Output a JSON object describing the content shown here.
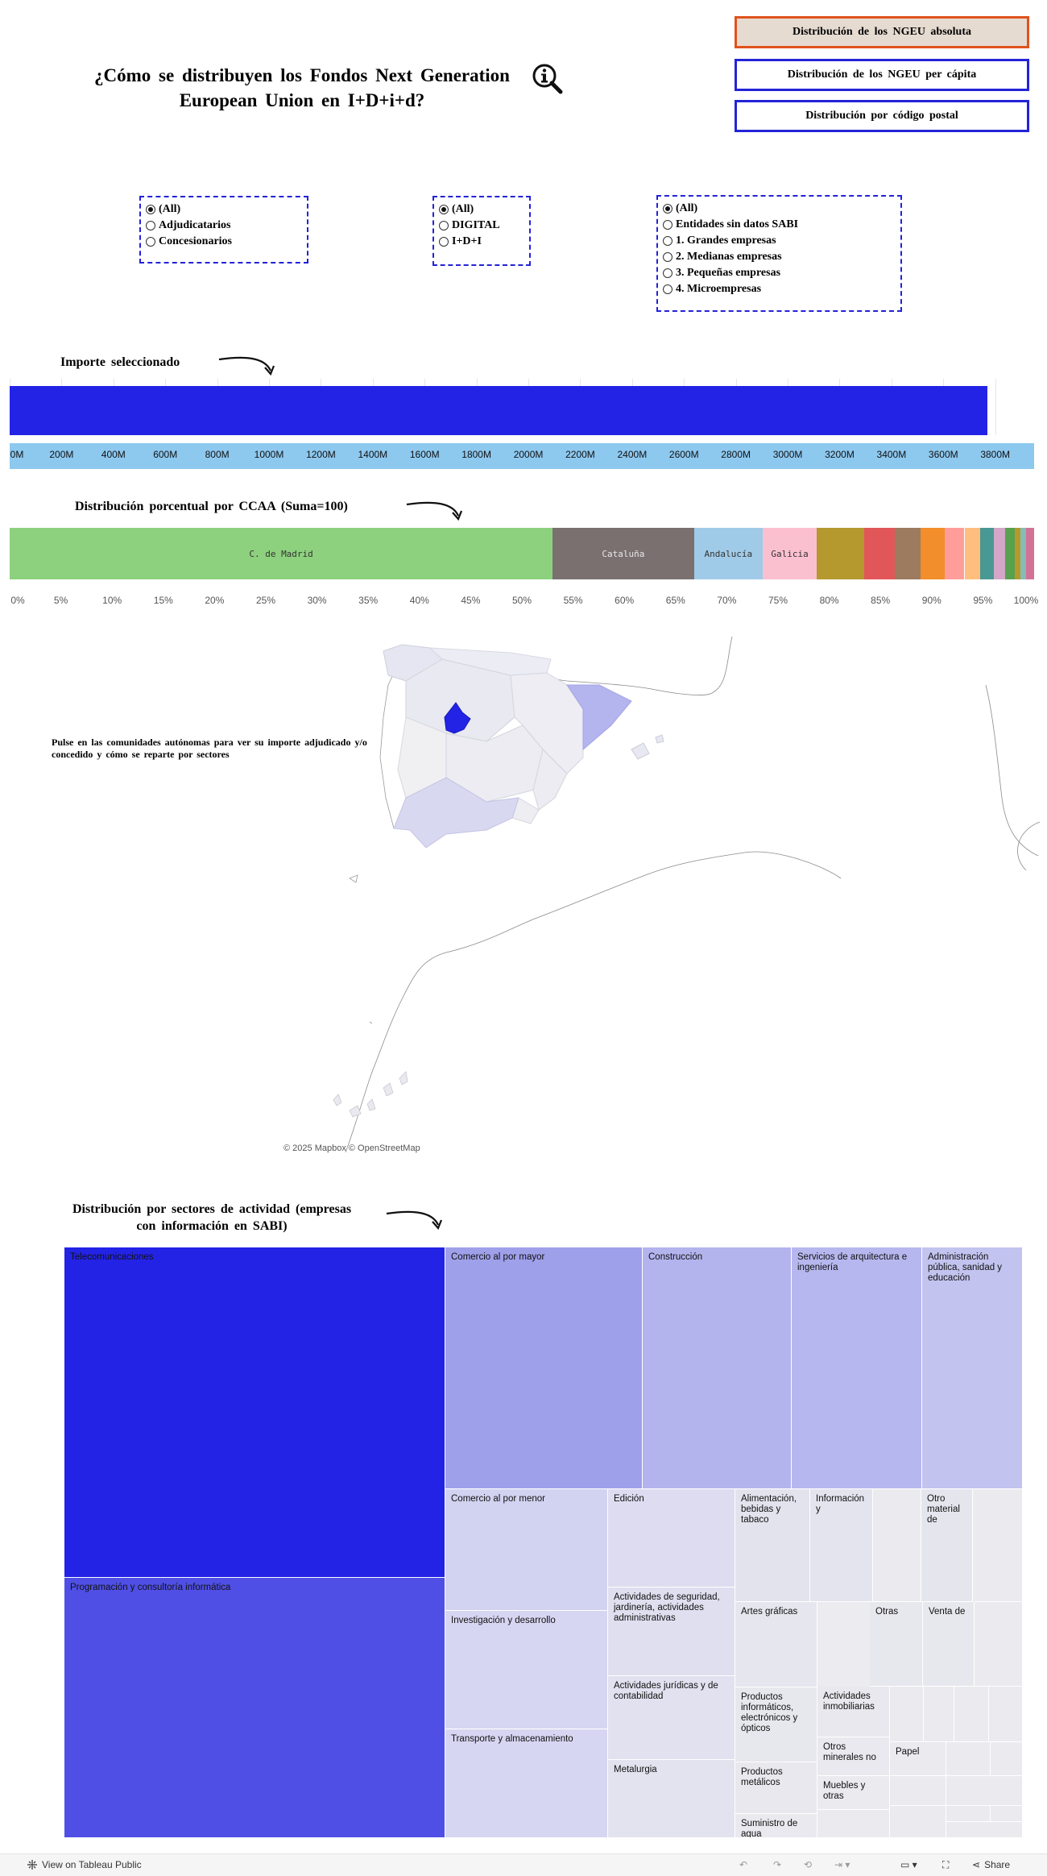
{
  "header": {
    "title": "¿Cómo se distribuyen los Fondos Next Generation European Union en I+D+i+d?",
    "nav_buttons": [
      {
        "label": "Distribución de los NGEU absoluta",
        "active": true
      },
      {
        "label": "Distribución de los NGEU per cápita",
        "active": false
      },
      {
        "label": "Distribución por código postal",
        "active": false
      }
    ]
  },
  "filters": {
    "tipo": {
      "options": [
        "(All)",
        "Adjudicatarios",
        "Concesionarios"
      ],
      "selected": 0
    },
    "ambito": {
      "options": [
        "(All)",
        "DIGITAL",
        "I+D+I"
      ],
      "selected": 0
    },
    "empresa": {
      "options": [
        "(All)",
        "Entidades sin datos SABI",
        "1. Grandes empresas",
        "2. Medianas empresas",
        "3. Pequeñas empresas",
        "4. Microempresas"
      ],
      "selected": 0
    }
  },
  "importe": {
    "title": "Importe seleccionado",
    "bar_color": "#2323e6",
    "axis_band_color": "#8dc8ef",
    "ticks": [
      "0M",
      "200M",
      "400M",
      "600M",
      "800M",
      "1000M",
      "1200M",
      "1400M",
      "1600M",
      "1800M",
      "2000M",
      "2200M",
      "2400M",
      "2600M",
      "2800M",
      "3000M",
      "3200M",
      "3400M",
      "3600M",
      "3800M"
    ]
  },
  "ccaa": {
    "title": "Distribución porcentual por CCAA (Suma=100)",
    "ticks": [
      "0%",
      "5%",
      "10%",
      "15%",
      "20%",
      "25%",
      "30%",
      "35%",
      "40%",
      "45%",
      "50%",
      "55%",
      "60%",
      "65%",
      "70%",
      "75%",
      "80%",
      "85%",
      "90%",
      "95%",
      "100%"
    ]
  },
  "map": {
    "instruction": "Pulse en las comunidades autónomas para ver su importe adjudicado y/o concedido y cómo se reparte por sectores",
    "credit": "© 2025 Mapbox © OpenStreetMap",
    "highlight_color": "#2323e6"
  },
  "sectores": {
    "title": "Distribución por sectores de actividad (empresas con información en SABI)"
  },
  "chart_data": [
    {
      "type": "bar",
      "title": "Importe seleccionado",
      "categories": [
        ""
      ],
      "values": [
        3770
      ],
      "xlim": [
        0,
        3950
      ],
      "unit": "M"
    },
    {
      "type": "bar",
      "stacked": true,
      "title": "Distribución porcentual por CCAA (Suma=100)",
      "xlim": [
        0,
        100
      ],
      "series": [
        {
          "name": "C. de Madrid",
          "value": 53.0,
          "color": "#8dd17e",
          "text_color": "#333333"
        },
        {
          "name": "Cataluña",
          "value": 13.8,
          "color": "#7a7070",
          "text_color": "#e8e8e8"
        },
        {
          "name": "Andalucía",
          "value": 6.7,
          "color": "#a0cbe8",
          "text_color": "#333333"
        },
        {
          "name": "Galicia",
          "value": 5.3,
          "color": "#fbc0d0",
          "text_color": "#333333"
        },
        {
          "name": "",
          "value": 4.6,
          "color": "#b5992e",
          "text_color": "#333333"
        },
        {
          "name": "",
          "value": 3.0,
          "color": "#e15759",
          "text_color": "#333333"
        },
        {
          "name": "",
          "value": 2.5,
          "color": "#9c7b5f",
          "text_color": "#333333"
        },
        {
          "name": "",
          "value": 2.4,
          "color": "#f28e2b",
          "text_color": "#333333"
        },
        {
          "name": "",
          "value": 1.9,
          "color": "#ff9d9a",
          "text_color": "#333333"
        },
        {
          "name": "",
          "value": 1.5,
          "color": "#ffbe7d",
          "text_color": "#333333"
        },
        {
          "name": "",
          "value": 1.4,
          "color": "#499894",
          "text_color": "#333333"
        },
        {
          "name": "",
          "value": 1.1,
          "color": "#d4a6c8",
          "text_color": "#333333"
        },
        {
          "name": "",
          "value": 0.9,
          "color": "#59a14f",
          "text_color": "#333333"
        },
        {
          "name": "",
          "value": 0.6,
          "color": "#b6992d",
          "text_color": "#333333"
        },
        {
          "name": "",
          "value": 0.5,
          "color": "#86bcb6",
          "text_color": "#333333"
        },
        {
          "name": "",
          "value": 0.8,
          "color": "#d37295",
          "text_color": "#333333"
        }
      ]
    },
    {
      "type": "heatmap",
      "subtype": "treemap",
      "title": "Distribución por sectores de actividad (empresas con información en SABI)",
      "cells": [
        {
          "label": "Telecomunicaciones",
          "color": "#2323e6"
        },
        {
          "label": "Programación y consultoría informática",
          "color": "#4f4fe6"
        },
        {
          "label": "Comercio al por mayor",
          "color": "#9fa0ea"
        },
        {
          "label": "Construcción",
          "color": "#b3b3ee"
        },
        {
          "label": "Servicios de arquitectura e ingeniería",
          "color": "#b7b7ef"
        },
        {
          "label": "Administración pública, sanidad y educación",
          "color": "#c3c3f0"
        },
        {
          "label": "Comercio al por menor",
          "color": "#d2d2f1"
        },
        {
          "label": "Investigación y desarrollo",
          "color": "#d6d6f2"
        },
        {
          "label": "Transporte y almacenamiento",
          "color": "#d6d6f2"
        },
        {
          "label": "Edición",
          "color": "#dddcf0"
        },
        {
          "label": "Actividades de seguridad, jardinería, actividades administrativas",
          "color": "#dfdff0"
        },
        {
          "label": "Actividades jurídicas y de contabilidad",
          "color": "#e1e1f0"
        },
        {
          "label": "Metalurgia",
          "color": "#e3e3ef"
        },
        {
          "label": "Alimentación, bebidas y tabaco",
          "color": "#e3e3ee"
        },
        {
          "label": "Información y",
          "color": "#e4e4ee"
        },
        {
          "label": "Otro material de",
          "color": "#e5e5ee"
        },
        {
          "label": "Artes gráficas",
          "color": "#e6e6ee"
        },
        {
          "label": "Otras",
          "color": "#e7e7ee"
        },
        {
          "label": "Venta de",
          "color": "#e7e7ee"
        },
        {
          "label": "Productos informáticos, electrónicos y ópticos",
          "color": "#e7e7ee"
        },
        {
          "label": "Actividades inmobiliarias",
          "color": "#e8e8ee"
        },
        {
          "label": "Productos metálicos",
          "color": "#e8e8ee"
        },
        {
          "label": "Otros minerales no",
          "color": "#e9e9ef"
        },
        {
          "label": "Suministro de agua",
          "color": "#e9e9ef"
        },
        {
          "label": "Muebles y otras",
          "color": "#eaeaef"
        },
        {
          "label": "Papel",
          "color": "#eaeaef"
        }
      ]
    }
  ],
  "footer": {
    "view_label": "View on Tableau Public",
    "share_label": "Share"
  }
}
